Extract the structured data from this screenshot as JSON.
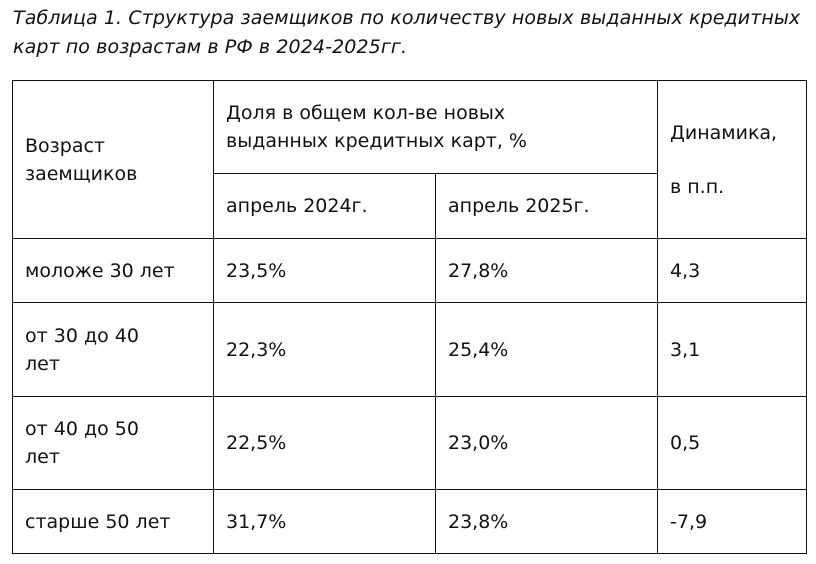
{
  "title": "Таблица 1. Структура заемщиков по количеству новых выданных кредитных карт по возрастам в РФ в 2024-2025гг.",
  "header": {
    "age": "Возраст заемщиков",
    "share": "Доля в общем кол-ве новых выданных кредитных карт, %",
    "dynamics_line1": "Динамика,",
    "dynamics_line2": "в п.п.",
    "apr2024": "апрель 2024г.",
    "apr2025": "апрель 2025г."
  },
  "rows": [
    {
      "age": "моложе 30 лет",
      "apr2024": "23,5%",
      "apr2025": "27,8%",
      "dynamics": "4,3"
    },
    {
      "age": "от 30 до 40 лет",
      "apr2024": "22,3%",
      "apr2025": "25,4%",
      "dynamics": "3,1"
    },
    {
      "age": "от 40 до 50 лет",
      "apr2024": "22,5%",
      "apr2025": "23,0%",
      "dynamics": "0,5"
    },
    {
      "age": "старше 50 лет",
      "apr2024": "31,7%",
      "apr2025": "23,8%",
      "dynamics": "-7,9"
    }
  ]
}
